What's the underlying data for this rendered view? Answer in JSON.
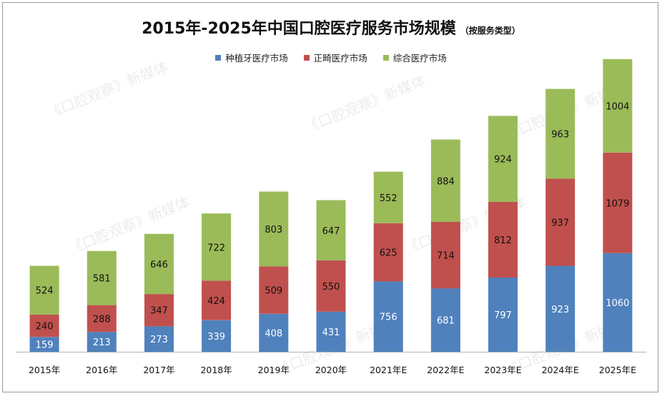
{
  "title": "2015年-2025年中国口腔医疗服务市场规模",
  "subtitle": "（按服务类型）",
  "watermark": "《口腔观察》新媒体",
  "colors": {
    "implant": "#4f81bd",
    "ortho": "#c0504d",
    "general": "#9bbb59"
  },
  "chart_data": {
    "type": "bar",
    "stacked": true,
    "categories": [
      "2015年",
      "2016年",
      "2017年",
      "2018年",
      "2019年",
      "2020年",
      "2021年E",
      "2022年E",
      "2023年E",
      "2024年E",
      "2025年E"
    ],
    "series": [
      {
        "name": "种植牙医疗市场",
        "color": "#4f81bd",
        "values": [
          159,
          213,
          273,
          339,
          408,
          431,
          756,
          681,
          797,
          923,
          1060
        ]
      },
      {
        "name": "正畸医疗市场",
        "color": "#c0504d",
        "values": [
          240,
          288,
          347,
          424,
          509,
          550,
          625,
          714,
          812,
          937,
          1079
        ]
      },
      {
        "name": "综合医疗市场",
        "color": "#9bbb59",
        "values": [
          524,
          581,
          646,
          722,
          803,
          647,
          552,
          884,
          924,
          963,
          1004
        ]
      }
    ],
    "ylim": [
      0,
      3500
    ],
    "grid": false,
    "legend": "top-center"
  }
}
